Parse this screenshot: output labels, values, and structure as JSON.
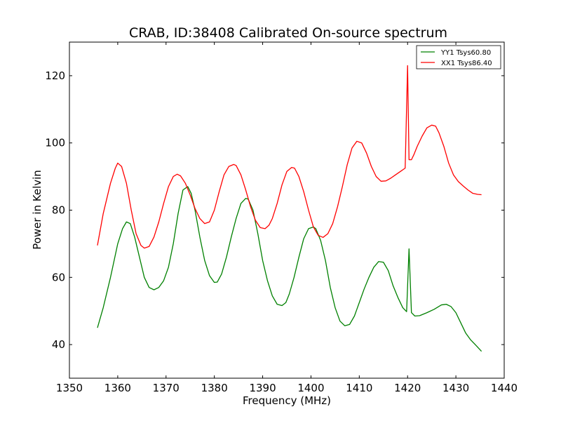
{
  "chart_data": {
    "type": "line",
    "title": "CRAB, ID:38408 Calibrated On-source spectrum",
    "xlabel": "Frequency (MHz)",
    "ylabel": "Power in Kelvin",
    "xlim": [
      1350,
      1440
    ],
    "ylim": [
      30,
      130
    ],
    "xticks": [
      1350,
      1360,
      1370,
      1380,
      1390,
      1400,
      1410,
      1420,
      1430,
      1440
    ],
    "yticks": [
      40,
      60,
      80,
      100,
      120
    ],
    "xtick_labels": [
      "1350",
      "1360",
      "1370",
      "1380",
      "1390",
      "1400",
      "1410",
      "1420",
      "1430",
      "1440"
    ],
    "ytick_labels": [
      "40",
      "60",
      "80",
      "100",
      "120"
    ],
    "grid": false,
    "legend_position": "top-right",
    "series": [
      {
        "name": "YY1 Tsys60.80",
        "color": "#008000",
        "x": [
          1355.8,
          1357.0,
          1358.5,
          1360.0,
          1361.0,
          1361.8,
          1362.6,
          1363.5,
          1364.5,
          1365.5,
          1366.5,
          1367.5,
          1368.5,
          1369.5,
          1370.5,
          1371.5,
          1372.5,
          1373.5,
          1374.5,
          1375.2,
          1376.0,
          1377.0,
          1378.0,
          1379.0,
          1380.0,
          1380.6,
          1381.5,
          1382.5,
          1383.5,
          1384.5,
          1385.5,
          1386.5,
          1387.0,
          1388.0,
          1389.0,
          1390.0,
          1391.0,
          1392.0,
          1393.0,
          1394.0,
          1394.8,
          1395.5,
          1396.5,
          1397.5,
          1398.5,
          1399.5,
          1400.5,
          1401.0,
          1402.0,
          1403.0,
          1404.0,
          1405.0,
          1406.0,
          1407.0,
          1408.0,
          1409.0,
          1410.0,
          1411.0,
          1412.0,
          1413.0,
          1414.0,
          1415.0,
          1416.0,
          1417.0,
          1418.0,
          1419.0,
          1419.8,
          1420.3,
          1420.8,
          1421.5,
          1422.5,
          1424.0,
          1425.5,
          1427.0,
          1428.0,
          1429.0,
          1430.0,
          1431.0,
          1432.0,
          1433.0,
          1434.0,
          1435.3
        ],
        "y": [
          45,
          51,
          60,
          70,
          74.5,
          76.5,
          76,
          72,
          66,
          60,
          57,
          56.3,
          57,
          59,
          63,
          70,
          79,
          86,
          87,
          85,
          80,
          72,
          65,
          60.5,
          58.5,
          58.6,
          61,
          66,
          72,
          77.5,
          82,
          83.5,
          83.3,
          80,
          73,
          65,
          59,
          54.5,
          52,
          51.6,
          52.5,
          55,
          60,
          66,
          71.5,
          74.5,
          75,
          74.5,
          71,
          65,
          57,
          51,
          47,
          45.6,
          46,
          48.5,
          52.5,
          56.5,
          60,
          63,
          64.7,
          64.5,
          62,
          57.5,
          54,
          51,
          49.8,
          68.5,
          49.5,
          48.5,
          48.6,
          49.5,
          50.5,
          51.8,
          52,
          51.3,
          49.5,
          46.5,
          43.5,
          41.5,
          40,
          38
        ]
      },
      {
        "name": "XX1 Tsys86.40",
        "color": "#ff0000",
        "x": [
          1355.8,
          1357.0,
          1358.5,
          1359.5,
          1360.0,
          1360.8,
          1361.8,
          1362.8,
          1363.8,
          1364.8,
          1365.5,
          1366.5,
          1367.5,
          1368.5,
          1369.5,
          1370.5,
          1371.5,
          1372.3,
          1373.0,
          1374.0,
          1375.0,
          1376.0,
          1377.0,
          1378.0,
          1379.0,
          1380.0,
          1381.0,
          1382.0,
          1383.0,
          1384.0,
          1384.5,
          1385.5,
          1386.5,
          1387.5,
          1388.5,
          1389.5,
          1390.5,
          1391.3,
          1392.0,
          1393.0,
          1394.0,
          1395.0,
          1396.0,
          1396.6,
          1397.5,
          1398.5,
          1399.5,
          1400.5,
          1401.5,
          1402.5,
          1403.5,
          1404.5,
          1405.5,
          1406.5,
          1407.5,
          1408.5,
          1409.5,
          1410.5,
          1411.5,
          1412.5,
          1413.5,
          1414.5,
          1415.5,
          1416.5,
          1417.5,
          1418.5,
          1419.5,
          1420.0,
          1420.3,
          1420.8,
          1421.3,
          1422.0,
          1423.0,
          1424.0,
          1425.0,
          1425.8,
          1426.5,
          1427.5,
          1428.5,
          1429.5,
          1430.5,
          1431.5,
          1432.5,
          1433.5,
          1434.5,
          1435.3
        ],
        "y": [
          69.5,
          79,
          88,
          92.5,
          94,
          93,
          88,
          80,
          73,
          69.5,
          68.7,
          69.2,
          72,
          76.5,
          82,
          87,
          90,
          90.7,
          90.2,
          88,
          84.5,
          80.5,
          77.5,
          76,
          76.5,
          80,
          85.5,
          90.5,
          93,
          93.6,
          93.3,
          90.5,
          86,
          81,
          77,
          74.8,
          74.5,
          75.5,
          77.5,
          82,
          87.5,
          91.5,
          92.7,
          92.5,
          90,
          85.5,
          80,
          75,
          72.5,
          71.9,
          73,
          76,
          81,
          87,
          93.5,
          98.5,
          100.5,
          100,
          97,
          93,
          90,
          88.6,
          88.7,
          89.5,
          90.5,
          91.5,
          92.5,
          123,
          95,
          95,
          96.5,
          99,
          102,
          104.5,
          105.3,
          105,
          103,
          99,
          94,
          90.5,
          88.5,
          87.2,
          86,
          85,
          84.7,
          84.6
        ]
      }
    ]
  }
}
